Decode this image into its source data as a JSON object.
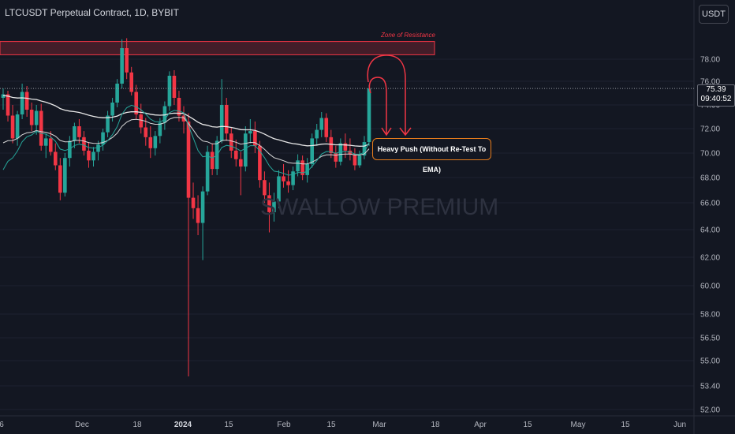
{
  "header": {
    "symbol": "LTCUSDT Perpetual Contract, 1D, BYBIT",
    "currency_button": "USDT"
  },
  "annotations": {
    "zone_label": "Zone of Resistance",
    "callout": "Heavy Push (Without Re-Test To EMA)"
  },
  "watermark": "SWALLOW PREMIUM",
  "last_price": {
    "value": "75.39",
    "countdown": "09:40:52"
  },
  "colors": {
    "background": "#131722",
    "up": "#26a69a",
    "down": "#f23645",
    "zone": "#f23645",
    "callout_border": "#e67c1c",
    "ema": "#e6e6e6"
  },
  "chart_data": {
    "type": "candlestick",
    "y_ticks": [
      "78.00",
      "76.00",
      "74.00",
      "72.00",
      "70.00",
      "68.00",
      "66.00",
      "64.00",
      "62.00",
      "60.00",
      "58.00",
      "56.50",
      "55.00",
      "53.40",
      "52.00"
    ],
    "x_ticks": [
      "6",
      "Dec",
      "18",
      "2024",
      "15",
      "Feb",
      "15",
      "Mar",
      "18",
      "Apr",
      "15",
      "May",
      "15",
      "Jun"
    ],
    "zone_of_resistance": [
      78.4,
      79.6
    ],
    "last_price": 75.39,
    "candles": [
      [
        74.6,
        75.4,
        73.6,
        74.9
      ],
      [
        74.9,
        75.2,
        72.6,
        73.1
      ],
      [
        73.1,
        74.0,
        70.8,
        71.2
      ],
      [
        71.2,
        73.5,
        70.6,
        73.2
      ],
      [
        73.2,
        75.8,
        72.8,
        75.1
      ],
      [
        75.1,
        75.6,
        73.0,
        73.6
      ],
      [
        73.6,
        74.2,
        71.8,
        72.3
      ],
      [
        72.3,
        74.0,
        71.5,
        73.5
      ],
      [
        73.5,
        74.1,
        70.2,
        70.6
      ],
      [
        70.6,
        71.6,
        69.6,
        71.2
      ],
      [
        71.2,
        71.8,
        69.8,
        70.1
      ],
      [
        70.1,
        70.8,
        68.6,
        69.0
      ],
      [
        69.0,
        69.6,
        66.2,
        66.8
      ],
      [
        66.8,
        70.0,
        66.5,
        69.6
      ],
      [
        69.6,
        71.4,
        68.9,
        71.0
      ],
      [
        71.0,
        72.5,
        70.4,
        72.2
      ],
      [
        72.2,
        72.8,
        70.8,
        71.3
      ],
      [
        71.3,
        71.8,
        69.8,
        70.2
      ],
      [
        70.2,
        70.9,
        68.8,
        69.4
      ],
      [
        69.4,
        70.5,
        68.9,
        70.1
      ],
      [
        70.1,
        71.0,
        69.4,
        70.7
      ],
      [
        70.7,
        72.0,
        70.2,
        71.7
      ],
      [
        71.7,
        73.5,
        71.3,
        73.1
      ],
      [
        73.1,
        74.6,
        72.6,
        74.2
      ],
      [
        74.2,
        76.2,
        73.8,
        75.8
      ],
      [
        75.8,
        79.8,
        75.4,
        79.0
      ],
      [
        79.0,
        79.9,
        76.2,
        76.8
      ],
      [
        76.8,
        77.3,
        74.8,
        75.1
      ],
      [
        75.1,
        75.7,
        72.8,
        73.2
      ],
      [
        73.2,
        74.1,
        71.6,
        72.1
      ],
      [
        72.1,
        72.9,
        70.6,
        71.3
      ],
      [
        71.3,
        72.2,
        69.6,
        70.4
      ],
      [
        70.4,
        71.8,
        69.8,
        71.4
      ],
      [
        71.4,
        72.9,
        70.8,
        72.5
      ],
      [
        72.5,
        74.3,
        71.9,
        73.9
      ],
      [
        73.9,
        76.9,
        73.5,
        76.5
      ],
      [
        76.5,
        77.0,
        74.0,
        74.6
      ],
      [
        74.6,
        75.2,
        72.6,
        73.1
      ],
      [
        73.1,
        73.9,
        71.6,
        72.6
      ],
      [
        72.6,
        73.3,
        54.0,
        66.4
      ],
      [
        66.4,
        67.6,
        64.8,
        65.6
      ],
      [
        65.6,
        66.6,
        63.6,
        64.5
      ],
      [
        64.5,
        67.3,
        61.8,
        66.9
      ],
      [
        66.9,
        70.6,
        66.6,
        70.1
      ],
      [
        70.1,
        70.8,
        68.2,
        68.7
      ],
      [
        68.7,
        71.4,
        68.2,
        71.0
      ],
      [
        71.0,
        76.2,
        70.8,
        74.0
      ],
      [
        74.0,
        74.6,
        71.0,
        71.6
      ],
      [
        71.6,
        72.1,
        69.6,
        70.2
      ],
      [
        70.2,
        71.1,
        68.9,
        69.5
      ],
      [
        69.5,
        70.1,
        66.6,
        68.9
      ],
      [
        68.9,
        72.2,
        68.5,
        71.6
      ],
      [
        71.6,
        72.8,
        70.8,
        71.8
      ],
      [
        71.8,
        72.6,
        70.0,
        70.6
      ],
      [
        70.6,
        71.0,
        67.2,
        67.8
      ],
      [
        67.8,
        68.5,
        66.0,
        66.6
      ],
      [
        66.6,
        67.6,
        63.8,
        65.3
      ],
      [
        65.3,
        66.8,
        64.6,
        66.1
      ],
      [
        66.1,
        68.6,
        65.6,
        68.1
      ],
      [
        68.1,
        69.1,
        67.2,
        67.7
      ],
      [
        67.7,
        68.6,
        66.8,
        67.4
      ],
      [
        67.4,
        68.9,
        67.0,
        68.5
      ],
      [
        68.5,
        69.9,
        68.1,
        69.4
      ],
      [
        69.4,
        69.8,
        67.8,
        68.2
      ],
      [
        68.2,
        69.6,
        67.6,
        69.1
      ],
      [
        69.1,
        71.6,
        68.8,
        71.2
      ],
      [
        71.2,
        72.4,
        70.6,
        71.9
      ],
      [
        71.9,
        73.4,
        71.3,
        72.9
      ],
      [
        72.9,
        73.3,
        70.9,
        71.3
      ],
      [
        71.3,
        71.9,
        69.6,
        70.0
      ],
      [
        70.0,
        70.6,
        68.8,
        69.3
      ],
      [
        69.3,
        71.2,
        69.0,
        70.8
      ],
      [
        70.8,
        71.6,
        69.6,
        70.2
      ],
      [
        70.2,
        71.2,
        69.4,
        69.9
      ],
      [
        69.9,
        70.4,
        68.6,
        69.0
      ],
      [
        69.0,
        70.2,
        68.8,
        69.8
      ],
      [
        69.8,
        71.4,
        69.5,
        70.9
      ],
      [
        70.9,
        75.7,
        70.6,
        75.39
      ]
    ]
  }
}
